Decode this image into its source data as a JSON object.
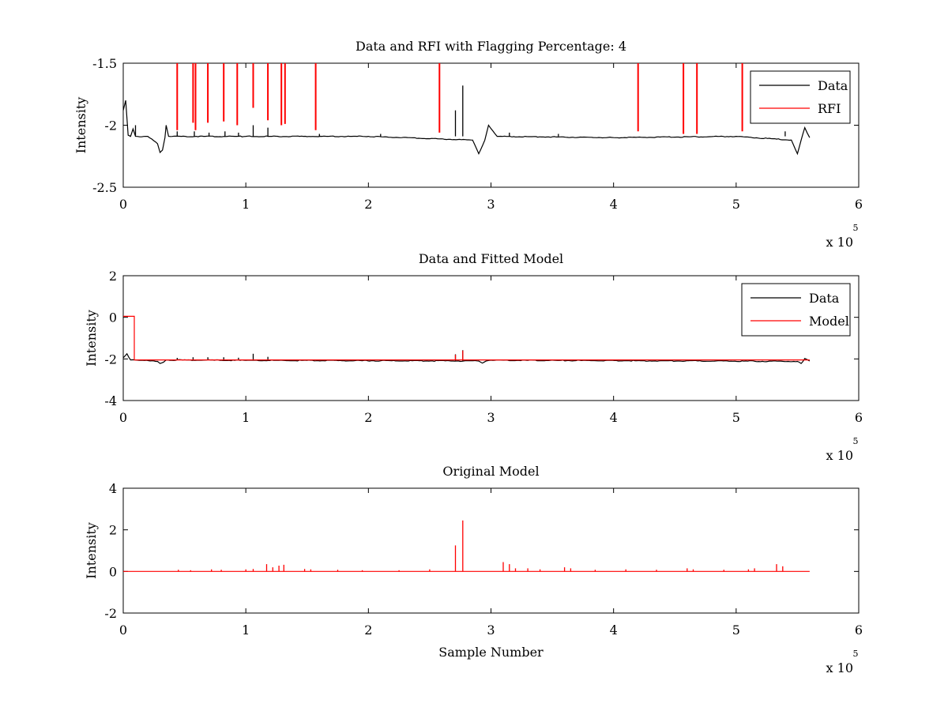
{
  "chart_data": [
    {
      "type": "line",
      "title": "Data and RFI with Flagging Percentage: 4",
      "xlabel": "",
      "ylabel": "Intensity",
      "xlim": [
        0,
        600000
      ],
      "ylim": [
        -2.5,
        -1.5
      ],
      "xticks": [
        "0",
        "1",
        "2",
        "3",
        "4",
        "5",
        "6"
      ],
      "yticks": [
        "-1.5",
        "-2",
        "-2.5"
      ],
      "x_multiplier": "x 10",
      "x_exponent": "5",
      "grid": false,
      "legend_position": "top-right",
      "legend": [
        "Data",
        "RFI"
      ],
      "colors": {
        "Data": "#000000",
        "RFI": "#ff0000"
      },
      "series": [
        {
          "name": "Data",
          "baseline": -2.09,
          "x": [
            0,
            2000,
            4000,
            6000,
            8000,
            10000,
            20000,
            28000,
            30000,
            32000,
            34000,
            35000,
            37000,
            100000,
            200000,
            285000,
            290000,
            295000,
            298000,
            305000,
            400000,
            500000,
            545000,
            550000,
            553000,
            556000,
            560000
          ],
          "y": [
            -1.88,
            -1.8,
            -2.08,
            -2.09,
            -2.03,
            -2.09,
            -2.09,
            -2.15,
            -2.22,
            -2.2,
            -2.1,
            -2.0,
            -2.09,
            -2.09,
            -2.09,
            -2.12,
            -2.23,
            -2.12,
            -2.0,
            -2.09,
            -2.1,
            -2.09,
            -2.12,
            -2.23,
            -2.12,
            -2.02,
            -2.1
          ],
          "spikes": [
            {
              "x": 10000,
              "y": -2.0
            },
            {
              "x": 44000,
              "y": -2.05
            },
            {
              "x": 58000,
              "y": -2.05
            },
            {
              "x": 70000,
              "y": -2.06
            },
            {
              "x": 83000,
              "y": -2.05
            },
            {
              "x": 94000,
              "y": -2.06
            },
            {
              "x": 106000,
              "y": -2.0
            },
            {
              "x": 118000,
              "y": -2.02
            },
            {
              "x": 160000,
              "y": -2.07
            },
            {
              "x": 210000,
              "y": -2.07
            },
            {
              "x": 271000,
              "y": -1.88
            },
            {
              "x": 277000,
              "y": -1.68
            },
            {
              "x": 315000,
              "y": -2.06
            },
            {
              "x": 355000,
              "y": -2.07
            },
            {
              "x": 540000,
              "y": -2.05
            }
          ]
        },
        {
          "name": "RFI",
          "spikes": [
            {
              "x": 44000,
              "y": -2.04
            },
            {
              "x": 57000,
              "y": -1.98
            },
            {
              "x": 59000,
              "y": -2.04
            },
            {
              "x": 69000,
              "y": -1.98
            },
            {
              "x": 82000,
              "y": -1.97
            },
            {
              "x": 93000,
              "y": -2.0
            },
            {
              "x": 106000,
              "y": -1.86
            },
            {
              "x": 118000,
              "y": -1.96
            },
            {
              "x": 129000,
              "y": -2.0
            },
            {
              "x": 132000,
              "y": -1.99
            },
            {
              "x": 157000,
              "y": -2.04
            },
            {
              "x": 258000,
              "y": -2.06
            },
            {
              "x": 420000,
              "y": -2.05
            },
            {
              "x": 457000,
              "y": -2.07
            },
            {
              "x": 468000,
              "y": -2.07
            },
            {
              "x": 505000,
              "y": -2.05
            }
          ]
        }
      ]
    },
    {
      "type": "line",
      "title": "Data and Fitted Model",
      "xlabel": "",
      "ylabel": "Intensity",
      "xlim": [
        0,
        600000
      ],
      "ylim": [
        -4,
        2
      ],
      "xticks": [
        "0",
        "1",
        "2",
        "3",
        "4",
        "5",
        "6"
      ],
      "yticks": [
        "2",
        "0",
        "-2",
        "-4"
      ],
      "x_multiplier": "x 10",
      "x_exponent": "5",
      "grid": false,
      "legend_position": "top-right",
      "legend": [
        "Data",
        "Model"
      ],
      "colors": {
        "Data": "#000000",
        "Model": "#ff0000"
      },
      "series": [
        {
          "name": "Data",
          "x": [
            0,
            3000,
            6000,
            10000,
            28000,
            30000,
            33000,
            35000,
            100000,
            290000,
            293000,
            296000,
            300000,
            550000,
            553000,
            556000,
            560000
          ],
          "y": [
            -1.95,
            -1.75,
            -2.05,
            -2.05,
            -2.12,
            -2.22,
            -2.15,
            -2.05,
            -2.07,
            -2.1,
            -2.2,
            -2.1,
            -2.06,
            -2.12,
            -2.22,
            -1.98,
            -2.1
          ],
          "spikes": [
            {
              "x": 44000,
              "y": -1.95
            },
            {
              "x": 57000,
              "y": -1.92
            },
            {
              "x": 69000,
              "y": -1.92
            },
            {
              "x": 82000,
              "y": -1.92
            },
            {
              "x": 94000,
              "y": -1.94
            },
            {
              "x": 106000,
              "y": -1.75
            },
            {
              "x": 118000,
              "y": -1.9
            },
            {
              "x": 271000,
              "y": -1.78
            },
            {
              "x": 277000,
              "y": -1.58
            }
          ]
        },
        {
          "name": "Model",
          "x": [
            0,
            9000,
            9000,
            560000
          ],
          "y": [
            0.05,
            0.05,
            -2.05,
            -2.05
          ],
          "spikes": [
            {
              "x": 271000,
              "y": -1.8
            },
            {
              "x": 277000,
              "y": -1.6
            }
          ]
        }
      ]
    },
    {
      "type": "line",
      "title": "Original Model",
      "xlabel": "Sample Number",
      "ylabel": "Intensity",
      "xlim": [
        0,
        600000
      ],
      "ylim": [
        -2,
        4
      ],
      "xticks": [
        "0",
        "1",
        "2",
        "3",
        "4",
        "5",
        "6"
      ],
      "yticks": [
        "4",
        "2",
        "0",
        "-2"
      ],
      "x_multiplier": "x 10",
      "x_exponent": "5",
      "grid": false,
      "colors": {
        "Model": "#ff0000"
      },
      "series": [
        {
          "x": [
            0,
            560000
          ],
          "y": [
            0,
            0
          ],
          "spikes": [
            {
              "x": 45000,
              "y": 0.08
            },
            {
              "x": 55000,
              "y": 0.06
            },
            {
              "x": 72000,
              "y": 0.1
            },
            {
              "x": 80000,
              "y": 0.08
            },
            {
              "x": 100000,
              "y": 0.1
            },
            {
              "x": 106000,
              "y": 0.12
            },
            {
              "x": 117000,
              "y": 0.35
            },
            {
              "x": 122000,
              "y": 0.2
            },
            {
              "x": 127000,
              "y": 0.28
            },
            {
              "x": 131000,
              "y": 0.32
            },
            {
              "x": 148000,
              "y": 0.12
            },
            {
              "x": 153000,
              "y": 0.1
            },
            {
              "x": 175000,
              "y": 0.08
            },
            {
              "x": 195000,
              "y": 0.06
            },
            {
              "x": 225000,
              "y": 0.06
            },
            {
              "x": 250000,
              "y": 0.1
            },
            {
              "x": 271000,
              "y": 1.25
            },
            {
              "x": 277000,
              "y": 2.45
            },
            {
              "x": 310000,
              "y": 0.45
            },
            {
              "x": 315000,
              "y": 0.35
            },
            {
              "x": 320000,
              "y": 0.15
            },
            {
              "x": 330000,
              "y": 0.15
            },
            {
              "x": 340000,
              "y": 0.1
            },
            {
              "x": 360000,
              "y": 0.2
            },
            {
              "x": 365000,
              "y": 0.15
            },
            {
              "x": 385000,
              "y": 0.08
            },
            {
              "x": 410000,
              "y": 0.1
            },
            {
              "x": 435000,
              "y": 0.08
            },
            {
              "x": 460000,
              "y": 0.15
            },
            {
              "x": 465000,
              "y": 0.1
            },
            {
              "x": 490000,
              "y": 0.08
            },
            {
              "x": 510000,
              "y": 0.1
            },
            {
              "x": 515000,
              "y": 0.15
            },
            {
              "x": 533000,
              "y": 0.35
            },
            {
              "x": 538000,
              "y": 0.25
            }
          ]
        }
      ]
    }
  ]
}
